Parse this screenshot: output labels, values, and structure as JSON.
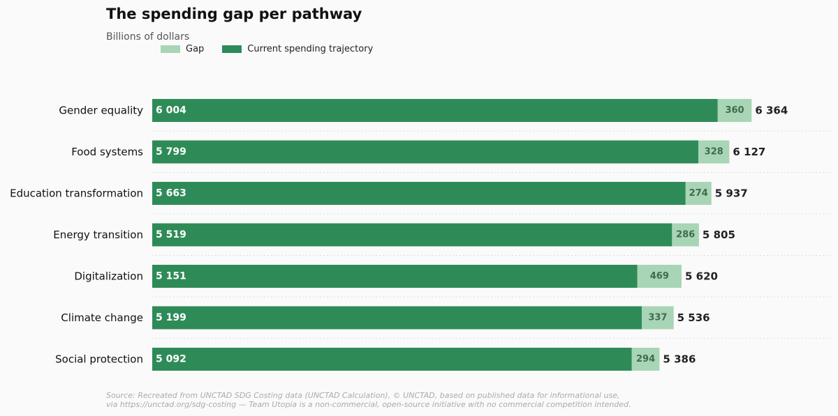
{
  "chart_data": {
    "type": "bar",
    "orientation": "horizontal",
    "stacked": true,
    "title": "The spending gap per pathway",
    "subtitle": "Billions of dollars",
    "categories": [
      "Gender equality",
      "Food systems",
      "Education transformation",
      "Energy transition",
      "Digitalization",
      "Climate change",
      "Social protection"
    ],
    "series": [
      {
        "name": "Current spending trajectory",
        "color": "#2e8b57",
        "values": [
          6004,
          5799,
          5663,
          5519,
          5151,
          5199,
          5092
        ],
        "labels": [
          "6 004",
          "5 799",
          "5 663",
          "5 519",
          "5 151",
          "5 199",
          "5 092"
        ]
      },
      {
        "name": "Gap",
        "color": "#a8d5b5",
        "values": [
          360,
          328,
          274,
          286,
          469,
          337,
          294
        ],
        "labels": [
          "360",
          "328",
          "274",
          "286",
          "469",
          "337",
          "294"
        ]
      }
    ],
    "totals": [
      6364,
      6127,
      5937,
      5805,
      5620,
      5536,
      5386
    ],
    "total_labels": [
      "6 364",
      "6 127",
      "5 937",
      "5 805",
      "5 620",
      "5 536",
      "5 386"
    ],
    "legend": {
      "placement": "top-left",
      "items": [
        "Gap",
        "Current spending trajectory"
      ]
    },
    "grid": false
  },
  "footer": {
    "line1": "Source: Recreated from UNCTAD SDG Costing data (UNCTAD Calculation), © UNCTAD, based on published data for informational use,",
    "line2": "via https://unctad.org/sdg-costing — Team Utopia is a non-commercial, open-source initiative with no commercial competition intended."
  }
}
